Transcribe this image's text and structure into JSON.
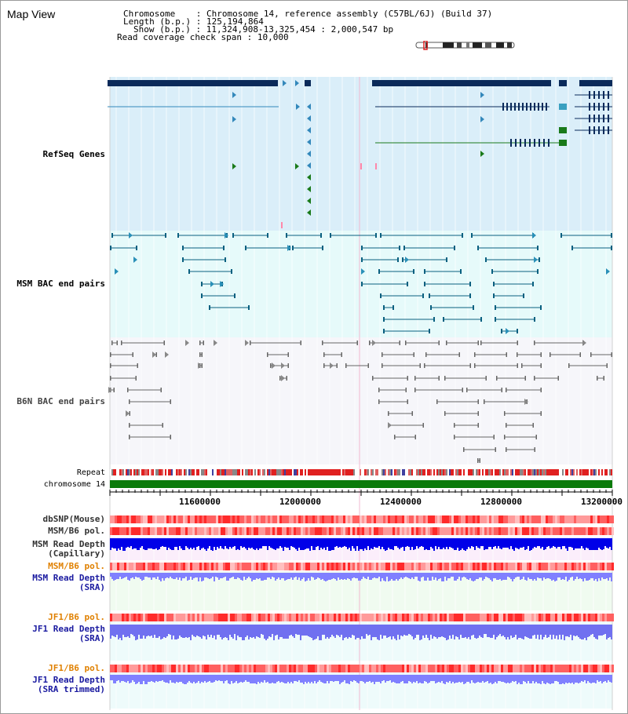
{
  "map_title": "Map View",
  "header": {
    "chromosome_key": "Chromosome",
    "chromosome_value": "Chromosome 14, reference assembly (C57BL/6J) (Build 37)",
    "length_key": "Length (b.p.)",
    "length_value": "125,194,864",
    "show_key": "Show (b.p.)",
    "show_value": "11,324,908-13,325,454 : 2,000,547 bp",
    "coverage_key": "Read coverage check span",
    "coverage_value": "10,000"
  },
  "tracks": {
    "refseq": "RefSeq Genes",
    "msm_bac": "MSM BAC end pairs",
    "b6n_bac": "B6N BAC end pairs",
    "repeat": "Repeat",
    "chromosome": "chromosome 14",
    "dbsnp": "dbSNP(Mouse)",
    "msm_b6_pol_1": "MSM/B6 pol.",
    "msm_read_depth_cap_1": "MSM Read Depth",
    "msm_read_depth_cap_2": "(Capillary)",
    "msm_b6_pol_2": "MSM/B6 pol.",
    "msm_read_depth_sra_1": "MSM Read Depth",
    "msm_read_depth_sra_2": "(SRA)",
    "jf1_b6_pol_1": "JF1/B6 pol.",
    "jf1_read_depth_sra_1": "JF1 Read Depth",
    "jf1_read_depth_sra_2": "(SRA)",
    "jf1_b6_pol_2": "JF1/B6 pol.",
    "jf1_read_depth_trim_1": "JF1 Read Depth",
    "jf1_read_depth_trim_2": "(SRA trimmed)"
  },
  "axis_ticks": [
    "11600000",
    "12000000",
    "12400000",
    "12800000",
    "13200000"
  ],
  "colors": {
    "refseq_label": "#1a1aa0",
    "msm_label": "#006080",
    "b6n_label": "#444444",
    "orange_label": "#e08000",
    "blue_label": "#1a1aa0",
    "refseq_bg": "#daeef9",
    "msm_bg": "#e6fafa",
    "b6n_bg": "#f6f6fa",
    "gene_dark": "#0a2a5a",
    "gene_blue": "#3388bb",
    "gene_green": "#1a7a1a",
    "msm_line": "#0a6080",
    "b6n_line": "#666666",
    "chrom_green": "#0a7a0a"
  }
}
